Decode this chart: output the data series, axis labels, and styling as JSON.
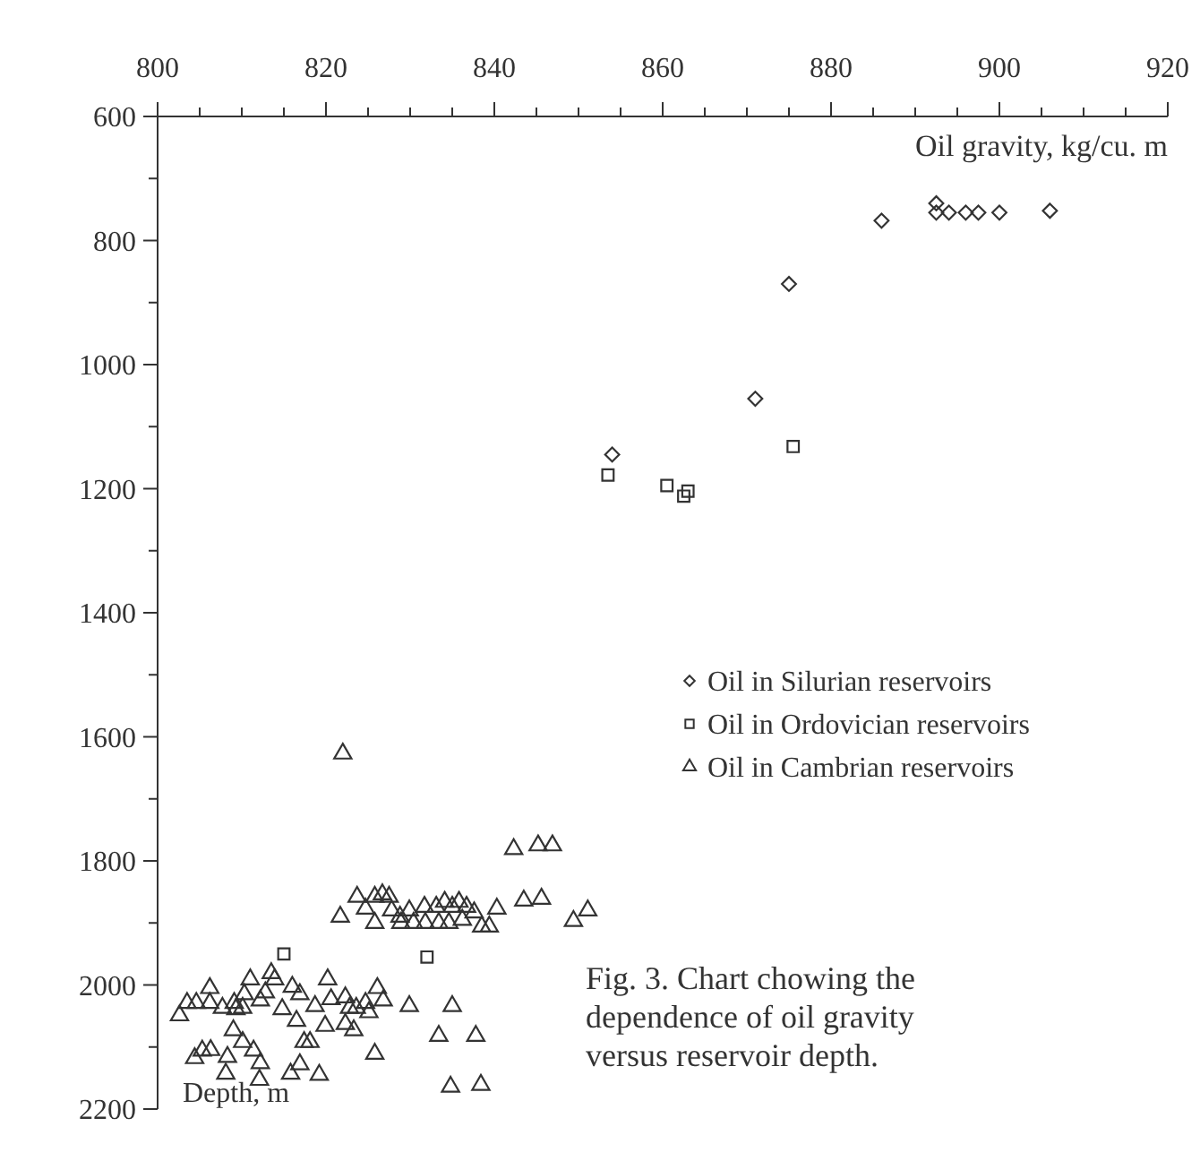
{
  "chart_data": {
    "type": "scatter",
    "xlabel": "Oil gravity, kg/cu. m",
    "ylabel": "Depth, m",
    "annotations": [
      "Fig. 3. Chart chowing the dependence of oil gravity versus reservoir depth."
    ],
    "xlim": [
      800,
      920
    ],
    "xticks": [
      800,
      {
        "value": 805,
        "label": null
      },
      {
        "value": 810,
        "label": null
      },
      {
        "value": 815,
        "label": null
      },
      820,
      {
        "value": 825,
        "label": null
      },
      {
        "value": 830,
        "label": null
      },
      {
        "value": 835,
        "label": null
      },
      840,
      {
        "value": 845,
        "label": null
      },
      {
        "value": 850,
        "label": null
      },
      {
        "value": 855,
        "label": null
      },
      860,
      {
        "value": 865,
        "label": null
      },
      {
        "value": 870,
        "label": null
      },
      {
        "value": 875,
        "label": null
      },
      880,
      {
        "value": 885,
        "label": null
      },
      {
        "value": 890,
        "label": null
      },
      {
        "value": 895,
        "label": null
      },
      900,
      {
        "value": 905,
        "label": null
      },
      {
        "value": 910,
        "label": null
      },
      {
        "value": 915,
        "label": null
      },
      920
    ],
    "ylim": [
      2200,
      600
    ],
    "yticks": [
      600,
      {
        "value": 700,
        "label": null
      },
      800,
      {
        "value": 900,
        "label": null
      },
      1000,
      {
        "value": 1100,
        "label": null
      },
      1200,
      {
        "value": 1300,
        "label": null
      },
      1400,
      {
        "value": 1500,
        "label": null
      },
      1600,
      {
        "value": 1700,
        "label": null
      },
      1800,
      {
        "value": 1900,
        "label": null
      },
      2000,
      {
        "value": 2100,
        "label": null
      },
      2200
    ],
    "legend": "right",
    "grid": false,
    "series": [
      {
        "name": "Oil in Silurian reservoirs",
        "color": "#333333",
        "marker": "diamond",
        "x": [
          854,
          871,
          875,
          886,
          892.5,
          892.5,
          894,
          896,
          897.5,
          900,
          906
        ],
        "values": [
          1145,
          1055,
          870,
          768,
          740,
          755,
          755,
          755,
          755,
          755,
          752
        ]
      },
      {
        "name": "Oil in Ordovician reservoirs",
        "color": "#333333",
        "marker": "square",
        "x": [
          853.5,
          860.5,
          862.5,
          863,
          875.5,
          815,
          832
        ],
        "values": [
          1178,
          1195,
          1212,
          1204,
          1132,
          1950,
          1955
        ]
      },
      {
        "name": "Oil in Cambrian reservoirs",
        "color": "#333333",
        "marker": "triangle",
        "x": [
          822,
          842.3,
          845.2,
          846.9,
          821.7,
          823.7,
          824.7,
          825.8,
          825.8,
          826.7,
          827.5,
          827.8,
          828.8,
          828.9,
          829.9,
          830.4,
          831.7,
          831.8,
          833.1,
          833.4,
          834.1,
          834.6,
          835,
          835.8,
          836.2,
          836.7,
          837.6,
          838.5,
          839.4,
          840.3,
          843.5,
          845.6,
          849.4,
          851.1,
          802.6,
          803.5,
          804.6,
          806.2,
          806.2,
          807.7,
          809.1,
          809.3,
          810.1,
          810.3,
          811,
          812.2,
          812.8,
          813.5,
          813.9,
          814.8,
          816,
          816.9,
          816.5,
          818.7,
          820.2,
          820.6,
          819.9,
          822.3,
          822.3,
          822.8,
          823.3,
          823.6,
          824.7,
          825.1,
          826.1,
          826.8,
          829.9,
          835,
          833.4,
          837.8,
          825.8,
          804.4,
          805.3,
          806.3,
          808.3,
          809,
          810.1,
          811.4,
          812.2,
          808.1,
          812.1,
          815.8,
          816.9,
          817.4,
          818.1,
          819.2,
          834.8,
          838.4
        ],
        "values": [
          1627,
          1781,
          1775,
          1775,
          1890,
          1858,
          1877,
          1858,
          1900,
          1854,
          1858,
          1880,
          1890,
          1900,
          1880,
          1900,
          1874,
          1900,
          1874,
          1900,
          1866,
          1900,
          1874,
          1866,
          1895,
          1874,
          1883,
          1906,
          1906,
          1877,
          1864,
          1861,
          1897,
          1880,
          2049,
          2029,
          2029,
          2005,
          2029,
          2037,
          2029,
          2039,
          2037,
          2015,
          1991,
          2025,
          2012,
          1981,
          1991,
          2039,
          2003,
          2015,
          2058,
          2034,
          1991,
          2023,
          2066,
          2020,
          2063,
          2037,
          2073,
          2037,
          2029,
          2044,
          2005,
          2025,
          2034,
          2034,
          2082,
          2082,
          2111,
          2118,
          2106,
          2105,
          2116,
          2073,
          2092,
          2106,
          2126,
          2143,
          2153,
          2143,
          2128,
          2092,
          2092,
          2145,
          2164,
          2161
        ]
      }
    ]
  }
}
